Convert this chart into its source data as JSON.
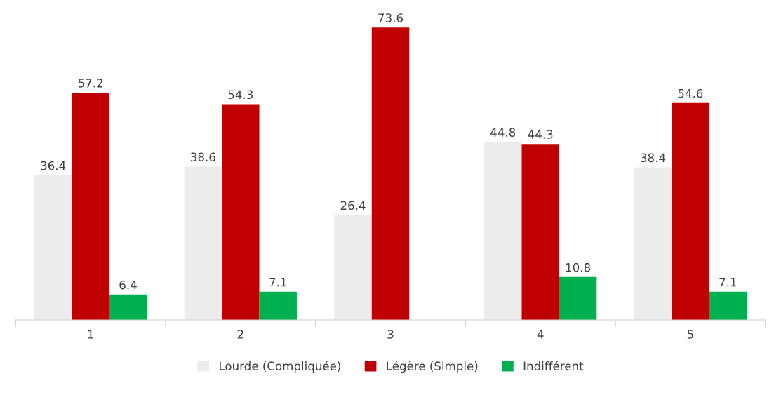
{
  "chart_data": {
    "type": "bar",
    "categories": [
      "1",
      "2",
      "3",
      "4",
      "5"
    ],
    "series": [
      {
        "name": "Lourde (Compliquée)",
        "color": "#ececec",
        "values": [
          36.4,
          38.6,
          26.4,
          44.8,
          38.4
        ]
      },
      {
        "name": "Légère (Simple)",
        "color": "#c00000",
        "values": [
          57.2,
          54.3,
          73.6,
          44.3,
          54.6
        ]
      },
      {
        "name": "Indifférent",
        "color": "#00b050",
        "values": [
          6.4,
          7.1,
          null,
          10.8,
          7.1
        ]
      }
    ],
    "data_labels": true,
    "legend": "bottom",
    "grid": false,
    "tick_labels": "x"
  }
}
